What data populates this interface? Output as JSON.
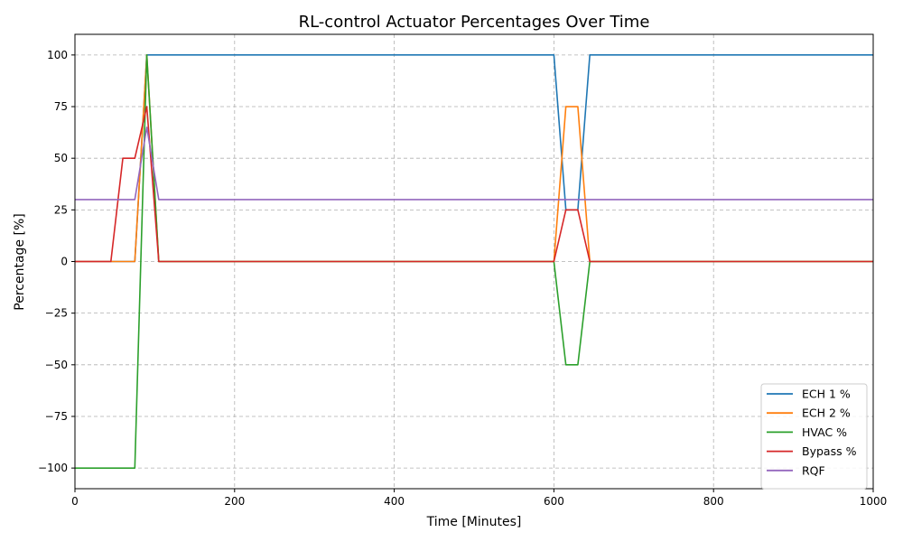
{
  "chart_data": {
    "type": "line",
    "title": "RL-control Actuator Percentages Over Time",
    "xlabel": "Time [Minutes]",
    "ylabel": "Percentage [%]",
    "xlim": [
      0,
      1000
    ],
    "ylim": [
      -110,
      110
    ],
    "xticks": [
      0,
      200,
      400,
      600,
      800,
      1000
    ],
    "yticks": [
      -100,
      -75,
      -50,
      -25,
      0,
      25,
      50,
      75,
      100
    ],
    "grid": true,
    "legend_position": "lower-right",
    "series": [
      {
        "name": "ECH 1 %",
        "color": "#1f77b4",
        "points": [
          [
            0,
            0
          ],
          [
            75,
            0
          ],
          [
            90,
            100
          ],
          [
            600,
            100
          ],
          [
            615,
            25
          ],
          [
            630,
            25
          ],
          [
            645,
            100
          ],
          [
            1000,
            100
          ]
        ]
      },
      {
        "name": "ECH 2 %",
        "color": "#ff7f0e",
        "points": [
          [
            0,
            0
          ],
          [
            75,
            0
          ],
          [
            90,
            100
          ],
          [
            105,
            0
          ],
          [
            600,
            0
          ],
          [
            615,
            75
          ],
          [
            630,
            75
          ],
          [
            645,
            0
          ],
          [
            1000,
            0
          ]
        ]
      },
      {
        "name": "HVAC %",
        "color": "#2ca02c",
        "points": [
          [
            0,
            -100
          ],
          [
            75,
            -100
          ],
          [
            90,
            100
          ],
          [
            105,
            0
          ],
          [
            600,
            0
          ],
          [
            615,
            -50
          ],
          [
            630,
            -50
          ],
          [
            645,
            0
          ],
          [
            1000,
            0
          ]
        ]
      },
      {
        "name": "Bypass %",
        "color": "#d62728",
        "points": [
          [
            0,
            0
          ],
          [
            45,
            0
          ],
          [
            60,
            50
          ],
          [
            75,
            50
          ],
          [
            90,
            75
          ],
          [
            105,
            0
          ],
          [
            600,
            0
          ],
          [
            615,
            25
          ],
          [
            630,
            25
          ],
          [
            645,
            0
          ],
          [
            1000,
            0
          ]
        ]
      },
      {
        "name": "RQF",
        "color": "#9467bd",
        "points": [
          [
            0,
            30
          ],
          [
            75,
            30
          ],
          [
            90,
            65
          ],
          [
            105,
            30
          ],
          [
            1000,
            30
          ]
        ]
      }
    ]
  }
}
